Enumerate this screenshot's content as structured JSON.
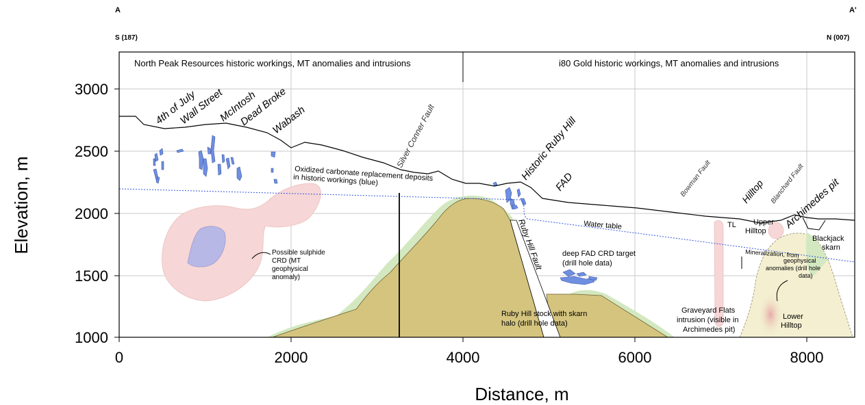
{
  "section": {
    "start_label": "A",
    "end_label": "A'",
    "start_bearing": "S (187)",
    "end_bearing": "N (007)",
    "left_panel_title": "North Peak Resources historic workings, MT anomalies and intrusions",
    "right_panel_title": "i80 Gold historic workings, MT anomalies and intrusions"
  },
  "axes": {
    "xlabel": "Distance, m",
    "ylabel": "Elevation, m",
    "x_ticks": [
      "0",
      "2000",
      "4000",
      "6000",
      "8000"
    ],
    "y_ticks": [
      "1000",
      "1500",
      "2000",
      "2500",
      "3000"
    ],
    "x_range": [
      0,
      8550
    ],
    "y_range": [
      1000,
      3300
    ]
  },
  "workings": {
    "names": [
      "4th of July",
      "Wall Street",
      "McIntosh",
      "Dead Broke",
      "Wabash",
      "Historic Ruby Hill",
      "FAD",
      "Hilltop",
      "Archimedes pit"
    ]
  },
  "faults": {
    "silver_conner": "Silver Conner Fault",
    "ruby_hill": "Ruby Hill Fault",
    "bowman": "Bowman Fault",
    "blanchard": "Blanchard Fault"
  },
  "annotations": {
    "oxidized_line1": "Oxidized carbonate replacement deposits",
    "oxidized_line2": "in historic workings (blue)",
    "sulphide_line1": "Possible sulphide",
    "sulphide_line2": "CRD (MT",
    "sulphide_line3": "geophysical",
    "sulphide_line4": "anomaly)",
    "water_table": "Water table",
    "deep_fad_line1": "deep FAD CRD target",
    "deep_fad_line2": "(drill hole data)",
    "ruby_stock_line1": "Ruby Hill stock with skarn",
    "ruby_stock_line2": "halo (drill hole data)",
    "graveyard_line1": "Graveyard Flats",
    "graveyard_line2": "intrusion (visible in",
    "graveyard_line3": "Archimedes pit)",
    "tl": "TL",
    "upper_hilltop_line1": "Upper",
    "upper_hilltop_line2": "Hilltop",
    "blackjack_line1": "Blackjack",
    "blackjack_line2": "skarn",
    "mineralization_line1": "Mineralization, from",
    "mineralization_line2": "geophysical",
    "mineralization_line3": "anomalies (drill hole",
    "mineralization_line4": "data)",
    "lower_hilltop_line1": "Lower",
    "lower_hilltop_line2": "Hilltop"
  },
  "colors": {
    "stock_fill": "#d4c47e",
    "skarn_halo": "#d3e8c0",
    "mt_anomaly": "#f6d6d6",
    "mt_core": "#b8b8e6",
    "oxidized_workings": "#6f8fe0",
    "water_table": "#3355dd",
    "graveyard": "#f3efd0"
  }
}
